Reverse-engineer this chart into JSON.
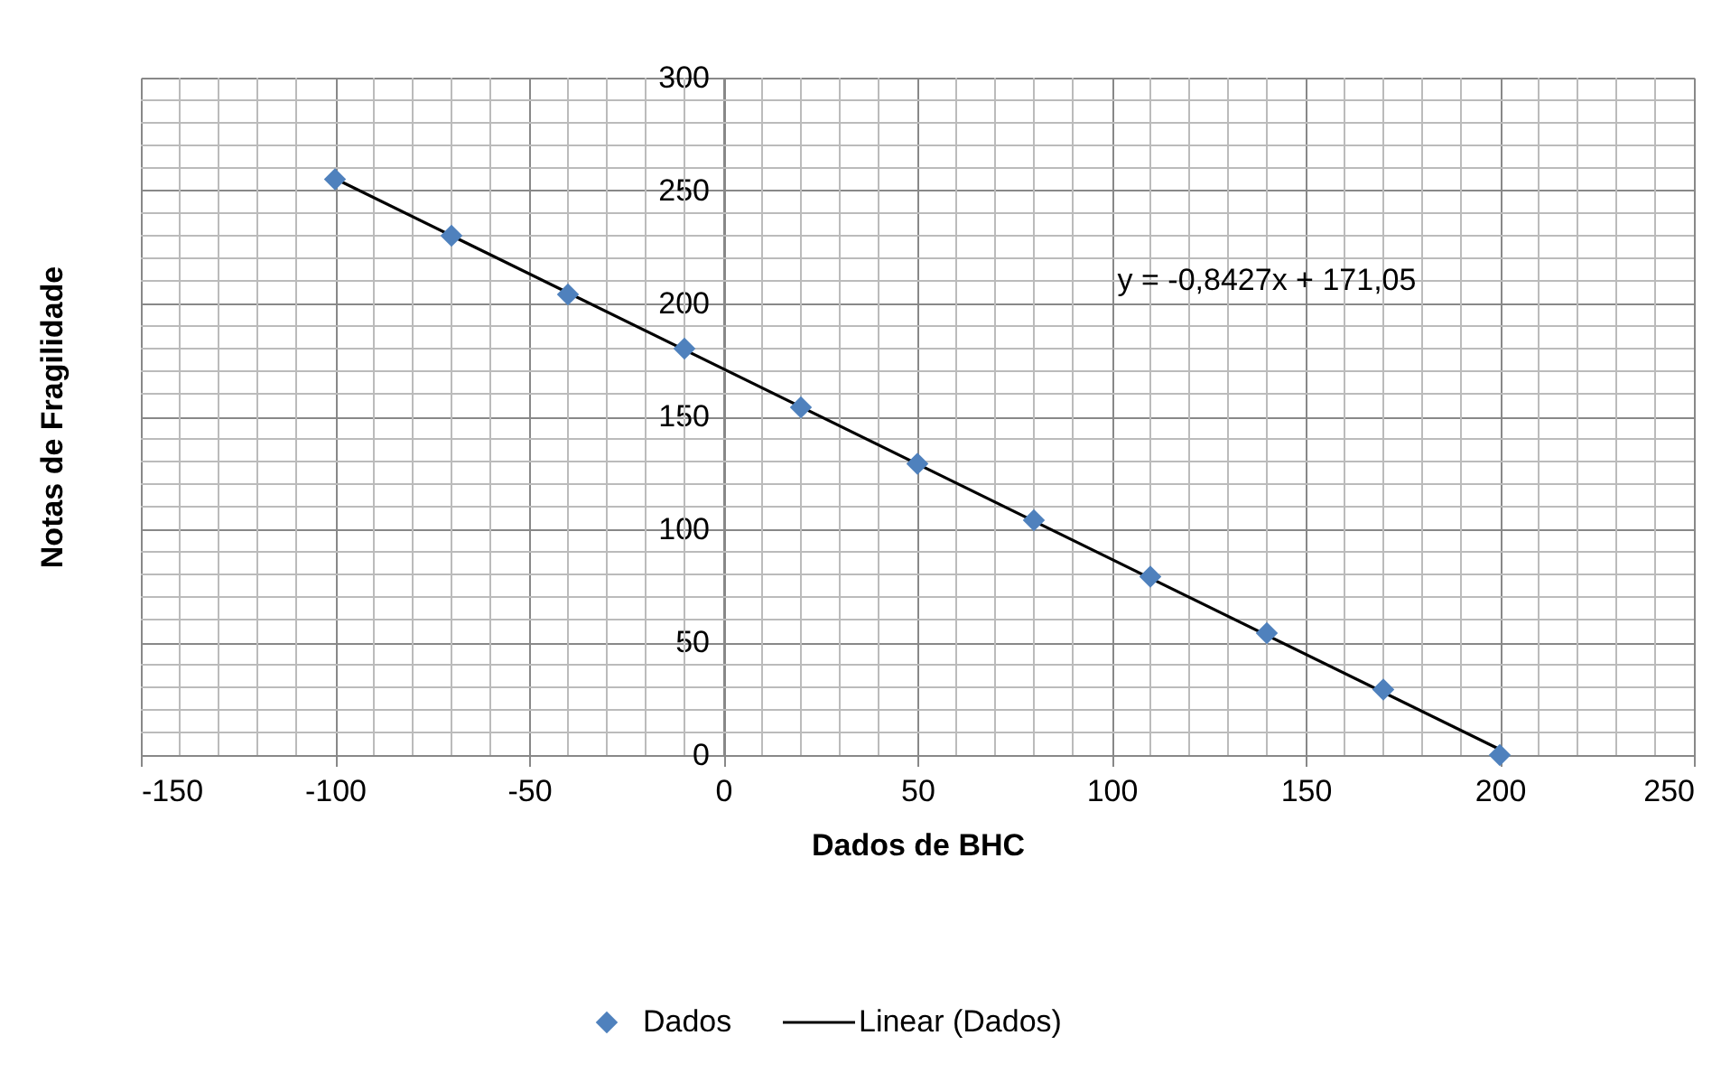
{
  "chart_data": {
    "type": "scatter",
    "xlabel": "Dados de BHC",
    "ylabel": "Notas de Fragilidade",
    "xlim": [
      -150,
      250
    ],
    "ylim": [
      0,
      300
    ],
    "xticks": [
      -150,
      -100,
      -50,
      0,
      50,
      100,
      150,
      200,
      250
    ],
    "yticks": [
      0,
      50,
      100,
      150,
      200,
      250,
      300
    ],
    "grid": true,
    "legend": "bottom",
    "annotations": [
      "y = -0,8427x + 171,05"
    ],
    "series": [
      {
        "name": "Dados",
        "marker": "diamond",
        "color": "#4f81bd",
        "x": [
          -100,
          -70,
          -40,
          -10,
          20,
          50,
          80,
          110,
          140,
          170,
          200
        ],
        "values": [
          255,
          230,
          204,
          180,
          154,
          129,
          104,
          79,
          54,
          29,
          0
        ]
      },
      {
        "name": "Linear (Dados)",
        "type": "line",
        "line_style": "solid",
        "color": "#000000",
        "x": [
          -100,
          200
        ],
        "values": [
          255.3,
          2.5
        ]
      }
    ]
  }
}
